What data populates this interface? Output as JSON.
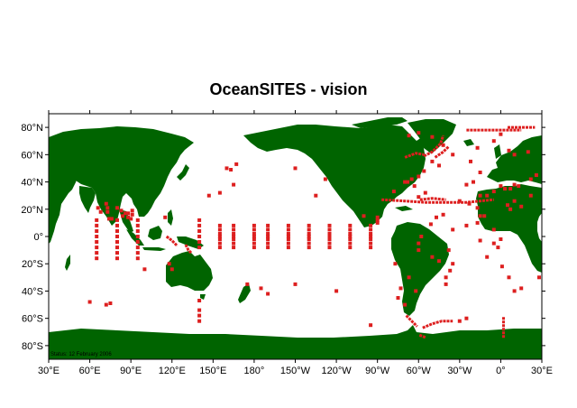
{
  "title": "OceanSITES  - vision",
  "status_note": "Status: 12 February 2006",
  "colors": {
    "land": "#006400",
    "ocean": "#ffffff",
    "site": "#dd1f1f",
    "frame": "#000000"
  },
  "map": {
    "projection": "equirectangular",
    "lon_range": [
      30,
      390
    ],
    "lat_range": [
      -90,
      90
    ]
  },
  "lat_labels": [
    {
      "lat": 80,
      "label": "80°N"
    },
    {
      "lat": 60,
      "label": "60°N"
    },
    {
      "lat": 40,
      "label": "40°N"
    },
    {
      "lat": 20,
      "label": "20°N"
    },
    {
      "lat": 0,
      "label": "0°"
    },
    {
      "lat": -20,
      "label": "20°S"
    },
    {
      "lat": -40,
      "label": "40°S"
    },
    {
      "lat": -60,
      "label": "60°S"
    },
    {
      "lat": -80,
      "label": "80°S"
    }
  ],
  "lon_labels": [
    {
      "lon": 30,
      "label": "30°E"
    },
    {
      "lon": 60,
      "label": "60°E"
    },
    {
      "lon": 90,
      "label": "90°E"
    },
    {
      "lon": 120,
      "label": "120°E"
    },
    {
      "lon": 150,
      "label": "150°E"
    },
    {
      "lon": 180,
      "label": "180°"
    },
    {
      "lon": 210,
      "label": "150°W"
    },
    {
      "lon": 240,
      "label": "120°W"
    },
    {
      "lon": 270,
      "label": "90°W"
    },
    {
      "lon": 300,
      "label": "60°W"
    },
    {
      "lon": 330,
      "label": "30°W"
    },
    {
      "lon": 360,
      "label": "0°"
    },
    {
      "lon": 390,
      "label": "30°E"
    }
  ],
  "sites": [
    [
      65,
      12
    ],
    [
      65,
      8
    ],
    [
      65,
      4
    ],
    [
      65,
      0
    ],
    [
      65,
      -4
    ],
    [
      65,
      -8
    ],
    [
      65,
      -12
    ],
    [
      65,
      -16
    ],
    [
      80,
      12
    ],
    [
      80,
      8
    ],
    [
      80,
      4
    ],
    [
      80,
      0
    ],
    [
      80,
      -4
    ],
    [
      80,
      -8
    ],
    [
      80,
      -12
    ],
    [
      80,
      -16
    ],
    [
      95,
      12
    ],
    [
      95,
      8
    ],
    [
      95,
      4
    ],
    [
      95,
      0
    ],
    [
      95,
      -4
    ],
    [
      95,
      -8
    ],
    [
      95,
      -12
    ],
    [
      95,
      -16
    ],
    [
      80,
      21
    ],
    [
      83,
      19
    ],
    [
      86,
      17
    ],
    [
      88,
      14
    ],
    [
      90,
      13
    ],
    [
      72,
      24
    ],
    [
      73,
      21
    ],
    [
      73,
      18
    ],
    [
      68,
      18
    ],
    [
      66,
      21
    ],
    [
      74,
      13
    ],
    [
      76,
      13
    ],
    [
      84,
      15
    ],
    [
      88,
      17
    ],
    [
      91,
      19
    ],
    [
      91,
      16
    ],
    [
      100,
      -24
    ],
    [
      115,
      14
    ],
    [
      118,
      -20
    ],
    [
      120,
      -24
    ],
    [
      60,
      -48
    ],
    [
      72,
      -50
    ],
    [
      75,
      -49
    ],
    [
      140,
      -47
    ],
    [
      140,
      -54
    ],
    [
      140,
      -58
    ],
    [
      140,
      -62
    ],
    [
      140,
      12
    ],
    [
      140,
      8
    ],
    [
      140,
      4
    ],
    [
      140,
      0
    ],
    [
      140,
      -4
    ],
    [
      140,
      -8
    ],
    [
      155,
      8
    ],
    [
      155,
      5
    ],
    [
      155,
      2
    ],
    [
      155,
      0
    ],
    [
      155,
      -2
    ],
    [
      155,
      -5
    ],
    [
      155,
      -8
    ],
    [
      165,
      8
    ],
    [
      165,
      5
    ],
    [
      165,
      2
    ],
    [
      165,
      0
    ],
    [
      165,
      -2
    ],
    [
      165,
      -5
    ],
    [
      165,
      -8
    ],
    [
      180,
      8
    ],
    [
      180,
      5
    ],
    [
      180,
      2
    ],
    [
      180,
      0
    ],
    [
      180,
      -2
    ],
    [
      180,
      -5
    ],
    [
      180,
      -8
    ],
    [
      190,
      8
    ],
    [
      190,
      5
    ],
    [
      190,
      2
    ],
    [
      190,
      0
    ],
    [
      190,
      -2
    ],
    [
      190,
      -5
    ],
    [
      190,
      -8
    ],
    [
      205,
      8
    ],
    [
      205,
      5
    ],
    [
      205,
      2
    ],
    [
      205,
      0
    ],
    [
      205,
      -2
    ],
    [
      205,
      -5
    ],
    [
      205,
      -8
    ],
    [
      220,
      8
    ],
    [
      220,
      5
    ],
    [
      220,
      2
    ],
    [
      220,
      0
    ],
    [
      220,
      -2
    ],
    [
      220,
      -5
    ],
    [
      220,
      -8
    ],
    [
      235,
      8
    ],
    [
      235,
      5
    ],
    [
      235,
      2
    ],
    [
      235,
      0
    ],
    [
      235,
      -2
    ],
    [
      235,
      -5
    ],
    [
      235,
      -8
    ],
    [
      250,
      8
    ],
    [
      250,
      5
    ],
    [
      250,
      2
    ],
    [
      250,
      0
    ],
    [
      250,
      -2
    ],
    [
      250,
      -5
    ],
    [
      250,
      -8
    ],
    [
      265,
      8
    ],
    [
      265,
      5
    ],
    [
      265,
      2
    ],
    [
      265,
      0
    ],
    [
      265,
      -2
    ],
    [
      265,
      -5
    ],
    [
      265,
      -8
    ],
    [
      270,
      10
    ],
    [
      270,
      12
    ],
    [
      270,
      14
    ],
    [
      160,
      50
    ],
    [
      163,
      49
    ],
    [
      167,
      53
    ],
    [
      155,
      32
    ],
    [
      165,
      38
    ],
    [
      147,
      30
    ],
    [
      175,
      -35
    ],
    [
      185,
      -38
    ],
    [
      190,
      -42
    ],
    [
      210,
      -35
    ],
    [
      240,
      -40
    ],
    [
      265,
      -65
    ],
    [
      260,
      15
    ],
    [
      232,
      42
    ],
    [
      210,
      50
    ],
    [
      225,
      30
    ],
    [
      283,
      -20
    ],
    [
      287,
      -38
    ],
    [
      293,
      -30
    ],
    [
      298,
      -40
    ],
    [
      285,
      -45
    ],
    [
      290,
      -50
    ],
    [
      325,
      -20
    ],
    [
      323,
      -25
    ],
    [
      320,
      -30
    ],
    [
      320,
      -35
    ],
    [
      335,
      -60
    ],
    [
      330,
      -62
    ],
    [
      355,
      -5
    ],
    [
      335,
      8
    ],
    [
      343,
      10
    ],
    [
      345,
      -3
    ],
    [
      350,
      -15
    ],
    [
      345,
      15
    ],
    [
      355,
      5
    ],
    [
      325,
      5
    ],
    [
      300,
      -10
    ],
    [
      310,
      -15
    ],
    [
      315,
      -18
    ],
    [
      322,
      -10
    ],
    [
      318,
      16
    ],
    [
      313,
      14
    ],
    [
      309,
      9
    ],
    [
      302,
      0
    ],
    [
      300,
      -5
    ],
    [
      345,
      30
    ],
    [
      350,
      30
    ],
    [
      355,
      33
    ],
    [
      360,
      37
    ],
    [
      363,
      35
    ],
    [
      367,
      35
    ],
    [
      370,
      38
    ],
    [
      373,
      37
    ],
    [
      382,
      42
    ],
    [
      386,
      45
    ],
    [
      335,
      38
    ],
    [
      340,
      40
    ],
    [
      345,
      47
    ],
    [
      338,
      55
    ],
    [
      325,
      60
    ],
    [
      318,
      67
    ],
    [
      310,
      73
    ],
    [
      300,
      76
    ],
    [
      293,
      74
    ],
    [
      355,
      70
    ],
    [
      360,
      75
    ],
    [
      370,
      60
    ],
    [
      380,
      62
    ],
    [
      366,
      63
    ],
    [
      343,
      65
    ],
    [
      382,
      30
    ],
    [
      375,
      22
    ],
    [
      365,
      23
    ],
    [
      367,
      20
    ],
    [
      370,
      26
    ],
    [
      360,
      -2
    ],
    [
      358,
      -8
    ],
    [
      361,
      -22
    ],
    [
      366,
      -30
    ],
    [
      370,
      -40
    ],
    [
      375,
      -38
    ],
    [
      388,
      -30
    ],
    [
      282,
      33
    ],
    [
      290,
      40
    ],
    [
      297,
      37
    ],
    [
      300,
      29
    ],
    [
      305,
      32
    ],
    [
      330,
      26
    ],
    [
      337,
      24
    ],
    [
      343,
      21
    ],
    [
      348,
      15
    ],
    [
      310,
      55
    ],
    [
      315,
      52
    ],
    [
      304,
      48
    ],
    [
      300,
      44
    ],
    [
      295,
      42
    ],
    [
      292,
      40
    ]
  ],
  "site_lines": [
    [
      [
        273,
        27
      ],
      [
        290,
        26
      ],
      [
        305,
        25
      ],
      [
        320,
        25
      ],
      [
        335,
        25
      ],
      [
        345,
        26
      ],
      [
        355,
        27
      ]
    ],
    [
      [
        301,
        27
      ],
      [
        310,
        28
      ],
      [
        320,
        27
      ]
    ],
    [
      [
        335,
        78
      ],
      [
        345,
        78
      ],
      [
        355,
        78
      ],
      [
        365,
        78
      ],
      [
        375,
        78
      ]
    ],
    [
      [
        365,
        80
      ],
      [
        375,
        80
      ],
      [
        385,
        80
      ]
    ],
    [
      [
        362,
        -59
      ],
      [
        362,
        -65
      ],
      [
        362,
        -70
      ],
      [
        362,
        -75
      ]
    ],
    [
      [
        291,
        -58
      ],
      [
        295,
        -62
      ],
      [
        299,
        -66
      ]
    ],
    [
      [
        303,
        -67
      ],
      [
        310,
        -64
      ],
      [
        317,
        -62
      ],
      [
        325,
        -62
      ]
    ],
    [
      [
        305,
        -74
      ],
      [
        300,
        -72
      ]
    ],
    [
      [
        304,
        59
      ],
      [
        310,
        62
      ],
      [
        316,
        68
      ],
      [
        318,
        74
      ]
    ],
    [
      [
        290,
        58
      ],
      [
        298,
        61
      ],
      [
        304,
        60
      ]
    ],
    [
      [
        312,
        58
      ],
      [
        318,
        62
      ],
      [
        322,
        66
      ]
    ],
    [
      [
        116,
        0
      ],
      [
        120,
        -3
      ],
      [
        124,
        -7
      ]
    ],
    [
      [
        130,
        -6
      ],
      [
        132,
        -10
      ],
      [
        134,
        -12
      ]
    ]
  ]
}
